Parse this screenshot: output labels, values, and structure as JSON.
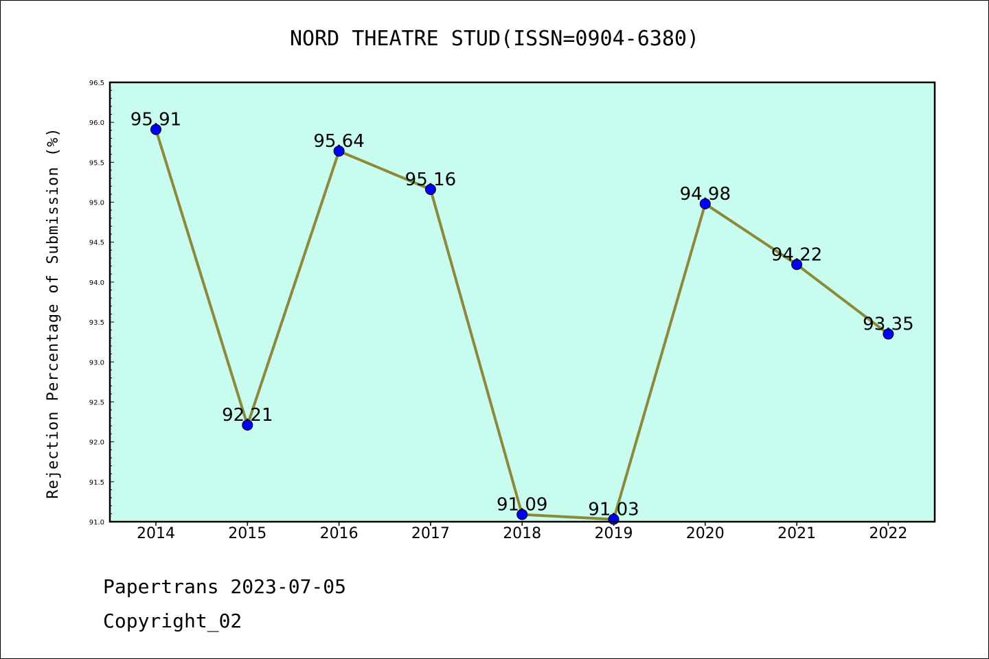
{
  "chart_data": {
    "type": "line",
    "title": "NORD THEATRE STUD(ISSN=0904-6380)",
    "xlabel": "",
    "ylabel": "Rejection Percentage of Submission (%)",
    "categories": [
      "2014",
      "2015",
      "2016",
      "2017",
      "2018",
      "2019",
      "2020",
      "2021",
      "2022"
    ],
    "series": [
      {
        "values": [
          95.91,
          92.21,
          95.64,
          95.16,
          91.09,
          91.03,
          94.98,
          94.22,
          93.35
        ]
      }
    ],
    "data_labels": [
      "95.91",
      "92.21",
      "95.64",
      "95.16",
      "91.09",
      "91.03",
      "94.98",
      "94.22",
      "93.35"
    ],
    "ylim": [
      91.0,
      96.5
    ],
    "yticks": [
      "91.0",
      "91.5",
      "92.0",
      "92.5",
      "93.0",
      "93.5",
      "94.0",
      "94.5",
      "95.0",
      "95.5",
      "96.0",
      "96.5"
    ],
    "grid": false,
    "colors": {
      "plot_background": "#c8fcee",
      "line": "#8b8a3a",
      "marker": "#0000ff"
    }
  },
  "footer": {
    "line1": "Papertrans 2023-07-05",
    "line2": "Copyright_02"
  }
}
